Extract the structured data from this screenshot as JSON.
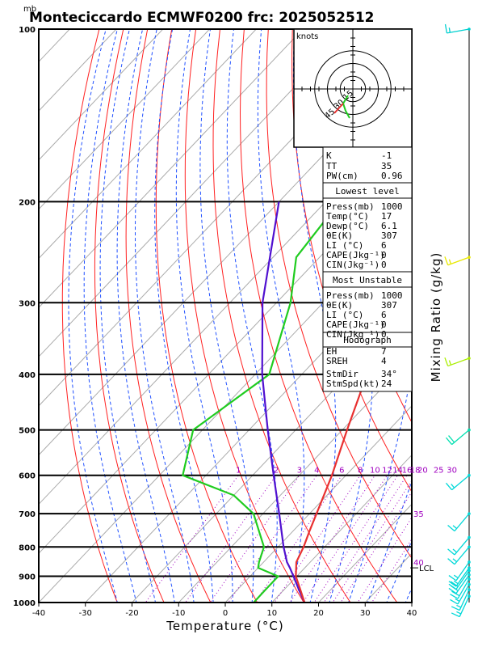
{
  "header": {
    "unit_label": "mb",
    "title": "Monteciccardo ECMWF0200 frc: 2025052512"
  },
  "chart_data": {
    "type": "skew-t",
    "xlabel": "Temperature (°C)",
    "right_label": "Mixing Ratio (g/kg)",
    "x_ticks": [
      -40,
      -30,
      -20,
      -10,
      0,
      10,
      20,
      30,
      40
    ],
    "p_ticks": [
      100,
      200,
      300,
      400,
      500,
      600,
      700,
      800,
      900,
      1000
    ],
    "xlim": [
      -40,
      40
    ],
    "plim": [
      1000,
      100
    ],
    "temperature": [
      [
        1000,
        17
      ],
      [
        950,
        13.5
      ],
      [
        900,
        9.8
      ],
      [
        850,
        7
      ],
      [
        800,
        5.5
      ],
      [
        750,
        3.5
      ],
      [
        700,
        1.5
      ],
      [
        600,
        -3
      ],
      [
        500,
        -9
      ],
      [
        400,
        -16
      ],
      [
        300,
        -24
      ],
      [
        250,
        -29
      ],
      [
        200,
        -29
      ],
      [
        150,
        -27
      ],
      [
        100,
        -24
      ]
    ],
    "dewpoint": [
      [
        1000,
        6.1
      ],
      [
        950,
        6
      ],
      [
        900,
        6
      ],
      [
        870,
        0
      ],
      [
        850,
        -1
      ],
      [
        800,
        -3
      ],
      [
        700,
        -12
      ],
      [
        650,
        -20
      ],
      [
        600,
        -35
      ],
      [
        500,
        -42
      ],
      [
        400,
        -37
      ],
      [
        300,
        -47
      ],
      [
        250,
        -55
      ],
      [
        200,
        -57
      ],
      [
        150,
        -60
      ],
      [
        100,
        -63
      ]
    ],
    "parcel": [
      [
        1000,
        17
      ],
      [
        950,
        13.2
      ],
      [
        900,
        9.3
      ],
      [
        870,
        6.8
      ],
      [
        850,
        5
      ],
      [
        800,
        1.2
      ],
      [
        700,
        -6.5
      ],
      [
        600,
        -15.5
      ],
      [
        500,
        -26
      ],
      [
        400,
        -38.5
      ],
      [
        300,
        -53
      ],
      [
        200,
        -70
      ]
    ],
    "mixing_ratio_labels": [
      "1",
      "2",
      "3",
      "4",
      "6",
      "8",
      "10",
      "12",
      "14",
      "16",
      "18",
      "20",
      "25",
      "30"
    ],
    "mixing_ratio_values": [
      1,
      2,
      3,
      4,
      6,
      8,
      10,
      12,
      14,
      16,
      18,
      20,
      25,
      30
    ],
    "theta_labels": [
      {
        "value": "35",
        "p": 700
      },
      {
        "value": "40",
        "p": 850
      }
    ],
    "lcl_label": "LCL",
    "lcl_p": 870,
    "hodograph": {
      "label": "knots",
      "ring_labels": [
        "15",
        "30",
        "45"
      ],
      "ring_values": [
        15,
        30,
        45
      ]
    },
    "winds": [
      {
        "p": 100,
        "dir": 260,
        "kt": 15,
        "color": "#00d0d0"
      },
      {
        "p": 250,
        "dir": 250,
        "kt": 15,
        "color": "#e8e800"
      },
      {
        "p": 375,
        "dir": 250,
        "kt": 15,
        "color": "#aaee00"
      },
      {
        "p": 500,
        "dir": 230,
        "kt": 20,
        "color": "#00e0b0"
      },
      {
        "p": 600,
        "dir": 230,
        "kt": 15,
        "color": "#00d8d8"
      },
      {
        "p": 700,
        "dir": 220,
        "kt": 15,
        "color": "#00d8d8"
      },
      {
        "p": 770,
        "dir": 220,
        "kt": 15,
        "color": "#00d8d8"
      },
      {
        "p": 800,
        "dir": 220,
        "kt": 15,
        "color": "#00d8d8"
      },
      {
        "p": 850,
        "dir": 215,
        "kt": 15,
        "color": "#00d8d8"
      },
      {
        "p": 870,
        "dir": 215,
        "kt": 15,
        "color": "#00d8d8"
      },
      {
        "p": 880,
        "dir": 215,
        "kt": 20,
        "color": "#00d8d8"
      },
      {
        "p": 895,
        "dir": 215,
        "kt": 20,
        "color": "#00d8d8"
      },
      {
        "p": 910,
        "dir": 210,
        "kt": 20,
        "color": "#00d8d8"
      },
      {
        "p": 930,
        "dir": 210,
        "kt": 15,
        "color": "#00d8d8"
      },
      {
        "p": 950,
        "dir": 205,
        "kt": 15,
        "color": "#00d8d8"
      },
      {
        "p": 975,
        "dir": 205,
        "kt": 15,
        "color": "#00d8d8"
      }
    ],
    "colors": {
      "isobar": "#000000",
      "isotherm": "#aaaaaa",
      "dry_adiabat": "#ff2020",
      "moist_adiabat": "#2050ff",
      "mixing_ratio": "#a000c0",
      "temperature": "#e83030",
      "dewpoint": "#20cc20",
      "parcel": "#5010d0"
    }
  },
  "indices": {
    "k_label": "K",
    "k_value": "-1",
    "tt_label": "TT",
    "tt_value": "35",
    "pw_label": "PW(cm)",
    "pw_value": "0.96"
  },
  "lowest_level": {
    "header": "Lowest level",
    "rows": [
      {
        "label": "Press(mb)",
        "value": "1000"
      },
      {
        "label": "Temp(°C)",
        "value": "17"
      },
      {
        "label": "Dewp(°C)",
        "value": "6.1"
      },
      {
        "label": "θE(K)",
        "value": "307"
      },
      {
        "label": "LI (°C)",
        "value": "6"
      },
      {
        "label": "CAPE(Jkg⁻¹)",
        "value": "0"
      },
      {
        "label": "CIN(Jkg⁻¹)",
        "value": "0"
      }
    ]
  },
  "most_unstable": {
    "header": "Most Unstable",
    "rows": [
      {
        "label": "Press(mb)",
        "value": "1000"
      },
      {
        "label": "θE(K)",
        "value": "307"
      },
      {
        "label": "LI (°C)",
        "value": "6"
      },
      {
        "label": "CAPE(Jkg⁻¹)",
        "value": "0"
      },
      {
        "label": "CIN(Jkg⁻¹)",
        "value": "0"
      }
    ]
  },
  "hodograph_panel": {
    "header": "Hodograph",
    "rows": [
      {
        "label": "EH",
        "value": "7"
      },
      {
        "label": "SREH",
        "value": "4"
      },
      {
        "label": "StmDir",
        "value": "34°"
      },
      {
        "label": "StmSpd(kt)",
        "value": "24"
      }
    ]
  }
}
